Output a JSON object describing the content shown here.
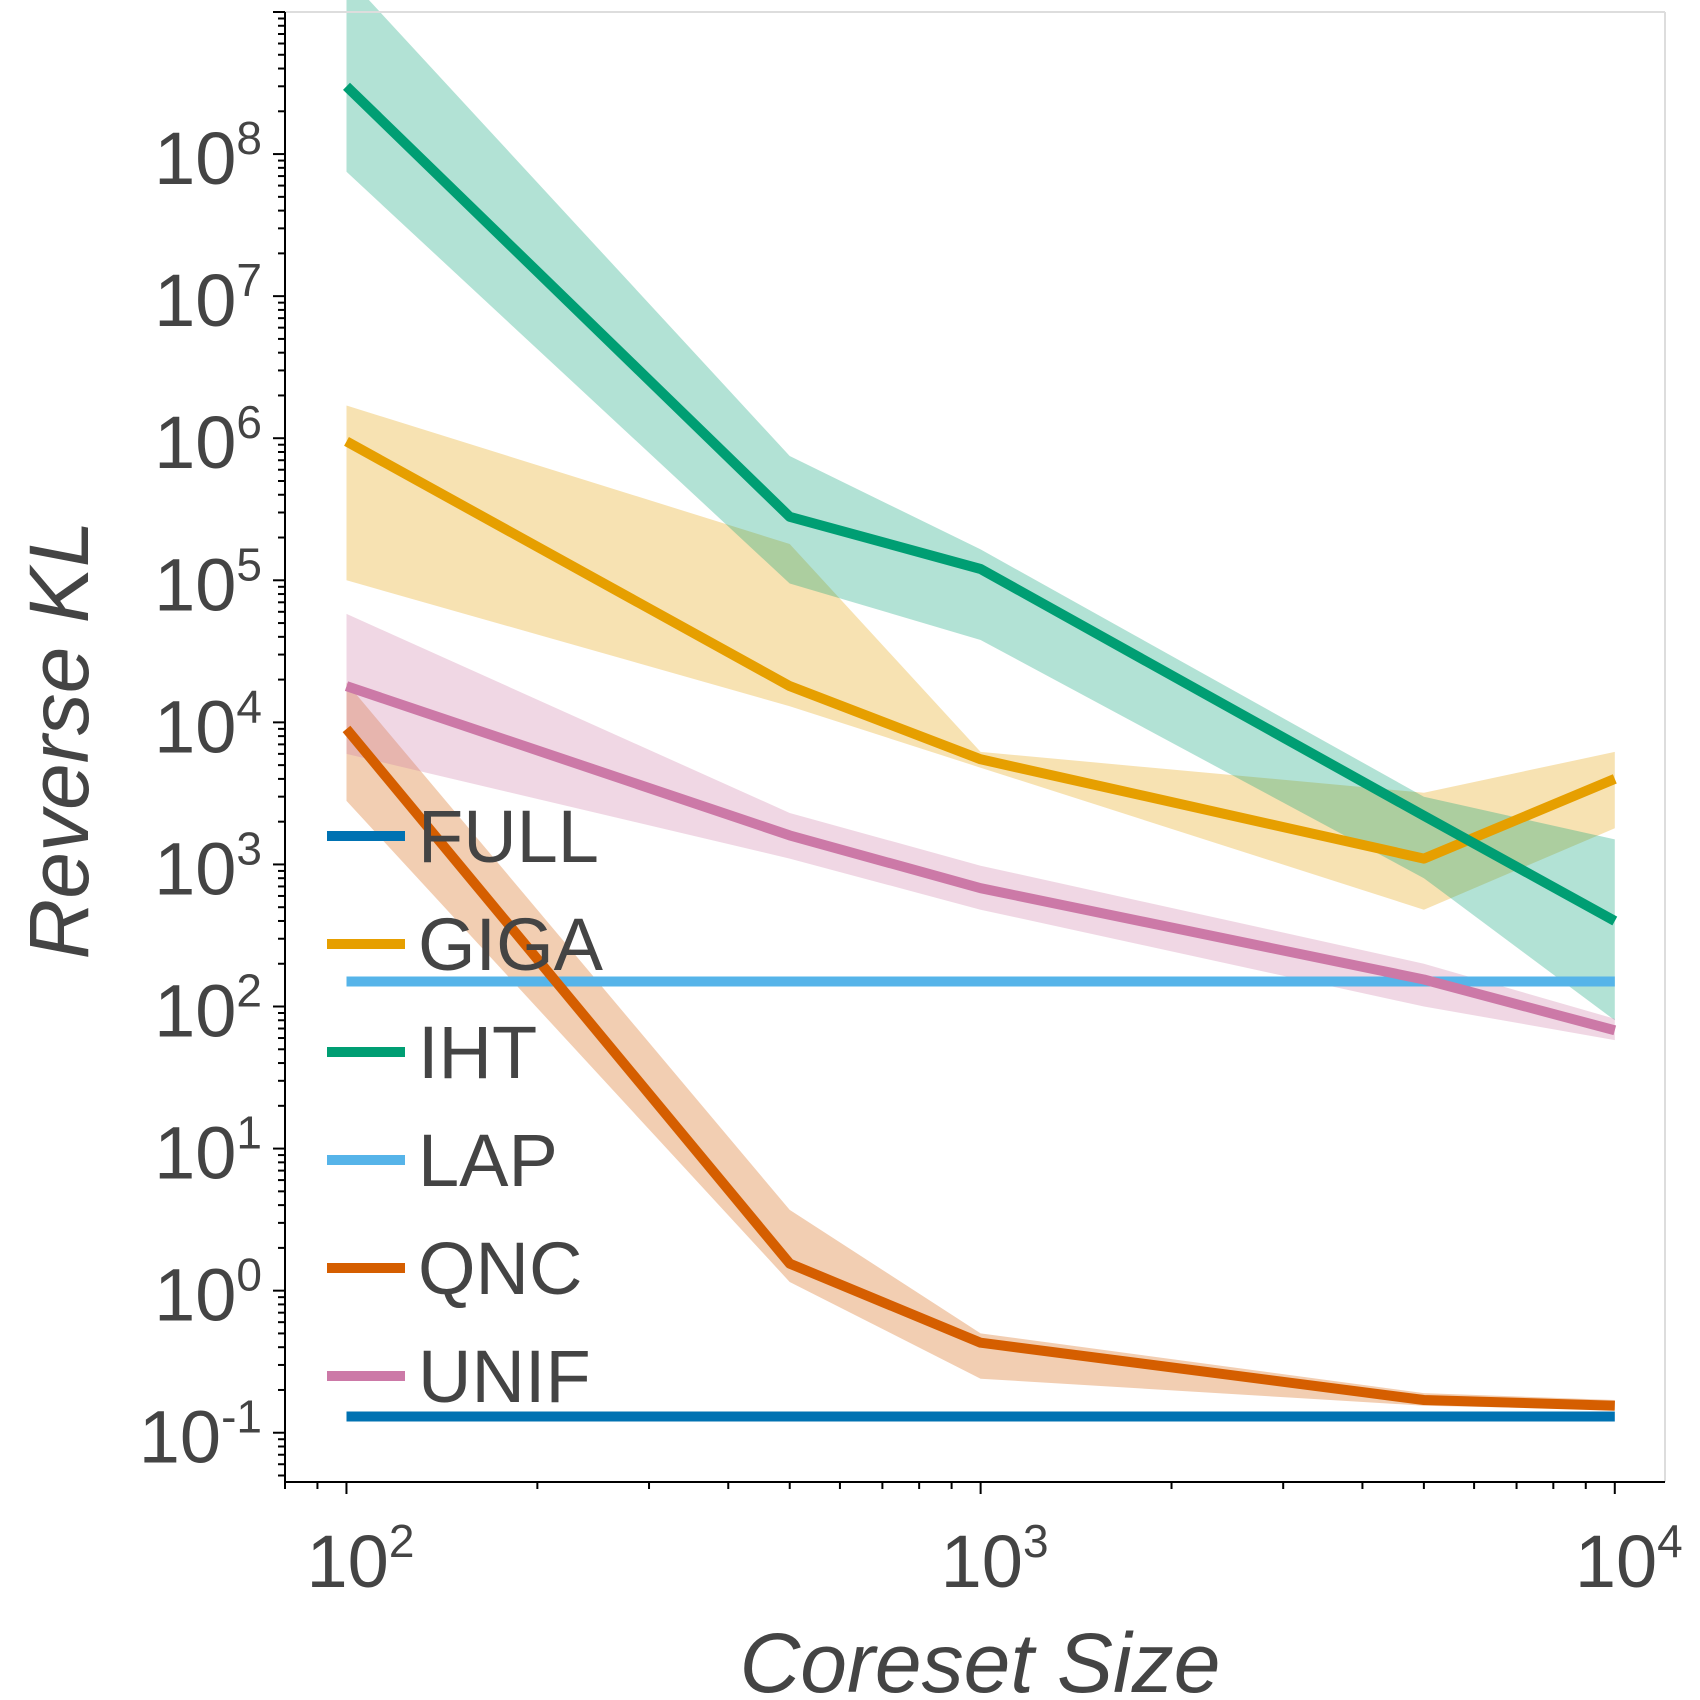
{
  "chart_data": {
    "type": "line",
    "xlabel": "Coreset Size",
    "ylabel": "Reverse KL",
    "xscale": "log",
    "yscale": "log",
    "xlim": [
      80,
      12000
    ],
    "ylim": [
      0.045,
      1000000000
    ],
    "x_ticks": [
      {
        "value": 100,
        "base": "10",
        "exp": "2"
      },
      {
        "value": 1000,
        "base": "10",
        "exp": "3"
      },
      {
        "value": 10000,
        "base": "10",
        "exp": "4"
      }
    ],
    "y_ticks": [
      {
        "value": 0.1,
        "base": "10",
        "exp": "-1"
      },
      {
        "value": 1,
        "base": "10",
        "exp": "0"
      },
      {
        "value": 10,
        "base": "10",
        "exp": "1"
      },
      {
        "value": 100,
        "base": "10",
        "exp": "2"
      },
      {
        "value": 1000,
        "base": "10",
        "exp": "3"
      },
      {
        "value": 10000,
        "base": "10",
        "exp": "4"
      },
      {
        "value": 100000,
        "base": "10",
        "exp": "5"
      },
      {
        "value": 1000000,
        "base": "10",
        "exp": "6"
      },
      {
        "value": 10000000,
        "base": "10",
        "exp": "7"
      },
      {
        "value": 100000000,
        "base": "10",
        "exp": "8"
      }
    ],
    "legend_position": "left",
    "series": [
      {
        "name": "FULL",
        "color": "#0072B2",
        "x": [
          100,
          10000
        ],
        "y": [
          0.13,
          0.13
        ]
      },
      {
        "name": "GIGA",
        "color": "#E69F00",
        "x": [
          100,
          500,
          1000,
          5000,
          10000
        ],
        "y": [
          950000,
          18000,
          5500,
          1100,
          4000
        ],
        "lower": [
          100000,
          13000,
          4800,
          480,
          1800
        ],
        "upper": [
          1700000,
          180000,
          6200,
          3200,
          6200
        ]
      },
      {
        "name": "IHT",
        "color": "#009E73",
        "x": [
          100,
          500,
          1000,
          5000,
          10000
        ],
        "y": [
          300000000,
          280000,
          120000,
          2200,
          400
        ],
        "lower": [
          75000000,
          95000,
          38000,
          800,
          80
        ],
        "upper": [
          1800000000,
          750000,
          165000,
          3000,
          1500
        ]
      },
      {
        "name": "LAP",
        "color": "#56B4E9",
        "x": [
          100,
          10000
        ],
        "y": [
          150,
          150
        ]
      },
      {
        "name": "QNC",
        "color": "#D55E00",
        "x": [
          100,
          500,
          1000,
          5000,
          10000
        ],
        "y": [
          9000,
          1.55,
          0.43,
          0.17,
          0.155
        ],
        "lower": [
          2800,
          1.15,
          0.24,
          0.155,
          0.145
        ],
        "upper": [
          19000,
          3.7,
          0.5,
          0.19,
          0.17
        ]
      },
      {
        "name": "UNIF",
        "color": "#CC79A7",
        "x": [
          100,
          500,
          1000,
          5000,
          10000
        ],
        "y": [
          18000,
          1600,
          680,
          155,
          68
        ],
        "lower": [
          6000,
          1100,
          480,
          100,
          58
        ],
        "upper": [
          58000,
          2300,
          980,
          200,
          82
        ]
      }
    ]
  }
}
